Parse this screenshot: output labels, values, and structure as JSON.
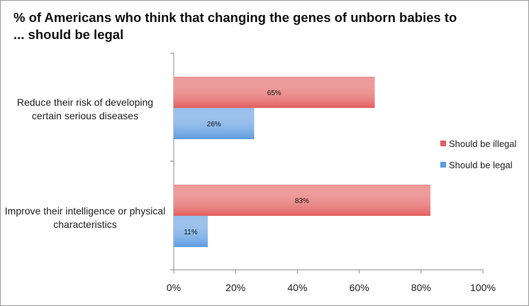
{
  "chart_data": {
    "type": "bar",
    "orientation": "horizontal",
    "title": "% of Americans who think that changing the genes of unborn babies to ... should be legal",
    "categories": [
      "Reduce their risk of developing certain serious diseases",
      "Improve their intelligence or physical characteristics"
    ],
    "series": [
      {
        "name": "Should be illegal",
        "values": [
          65,
          83
        ],
        "labels": [
          "65%",
          "83%"
        ],
        "color": "#e35d5d"
      },
      {
        "name": "Should be legal",
        "values": [
          26,
          11
        ],
        "labels": [
          "26%",
          "11%"
        ],
        "color": "#5d9be0"
      }
    ],
    "xlim": [
      0,
      100
    ],
    "xticks": [
      "0%",
      "20%",
      "40%",
      "60%",
      "80%",
      "100%"
    ],
    "grid": false,
    "legend": "right"
  }
}
